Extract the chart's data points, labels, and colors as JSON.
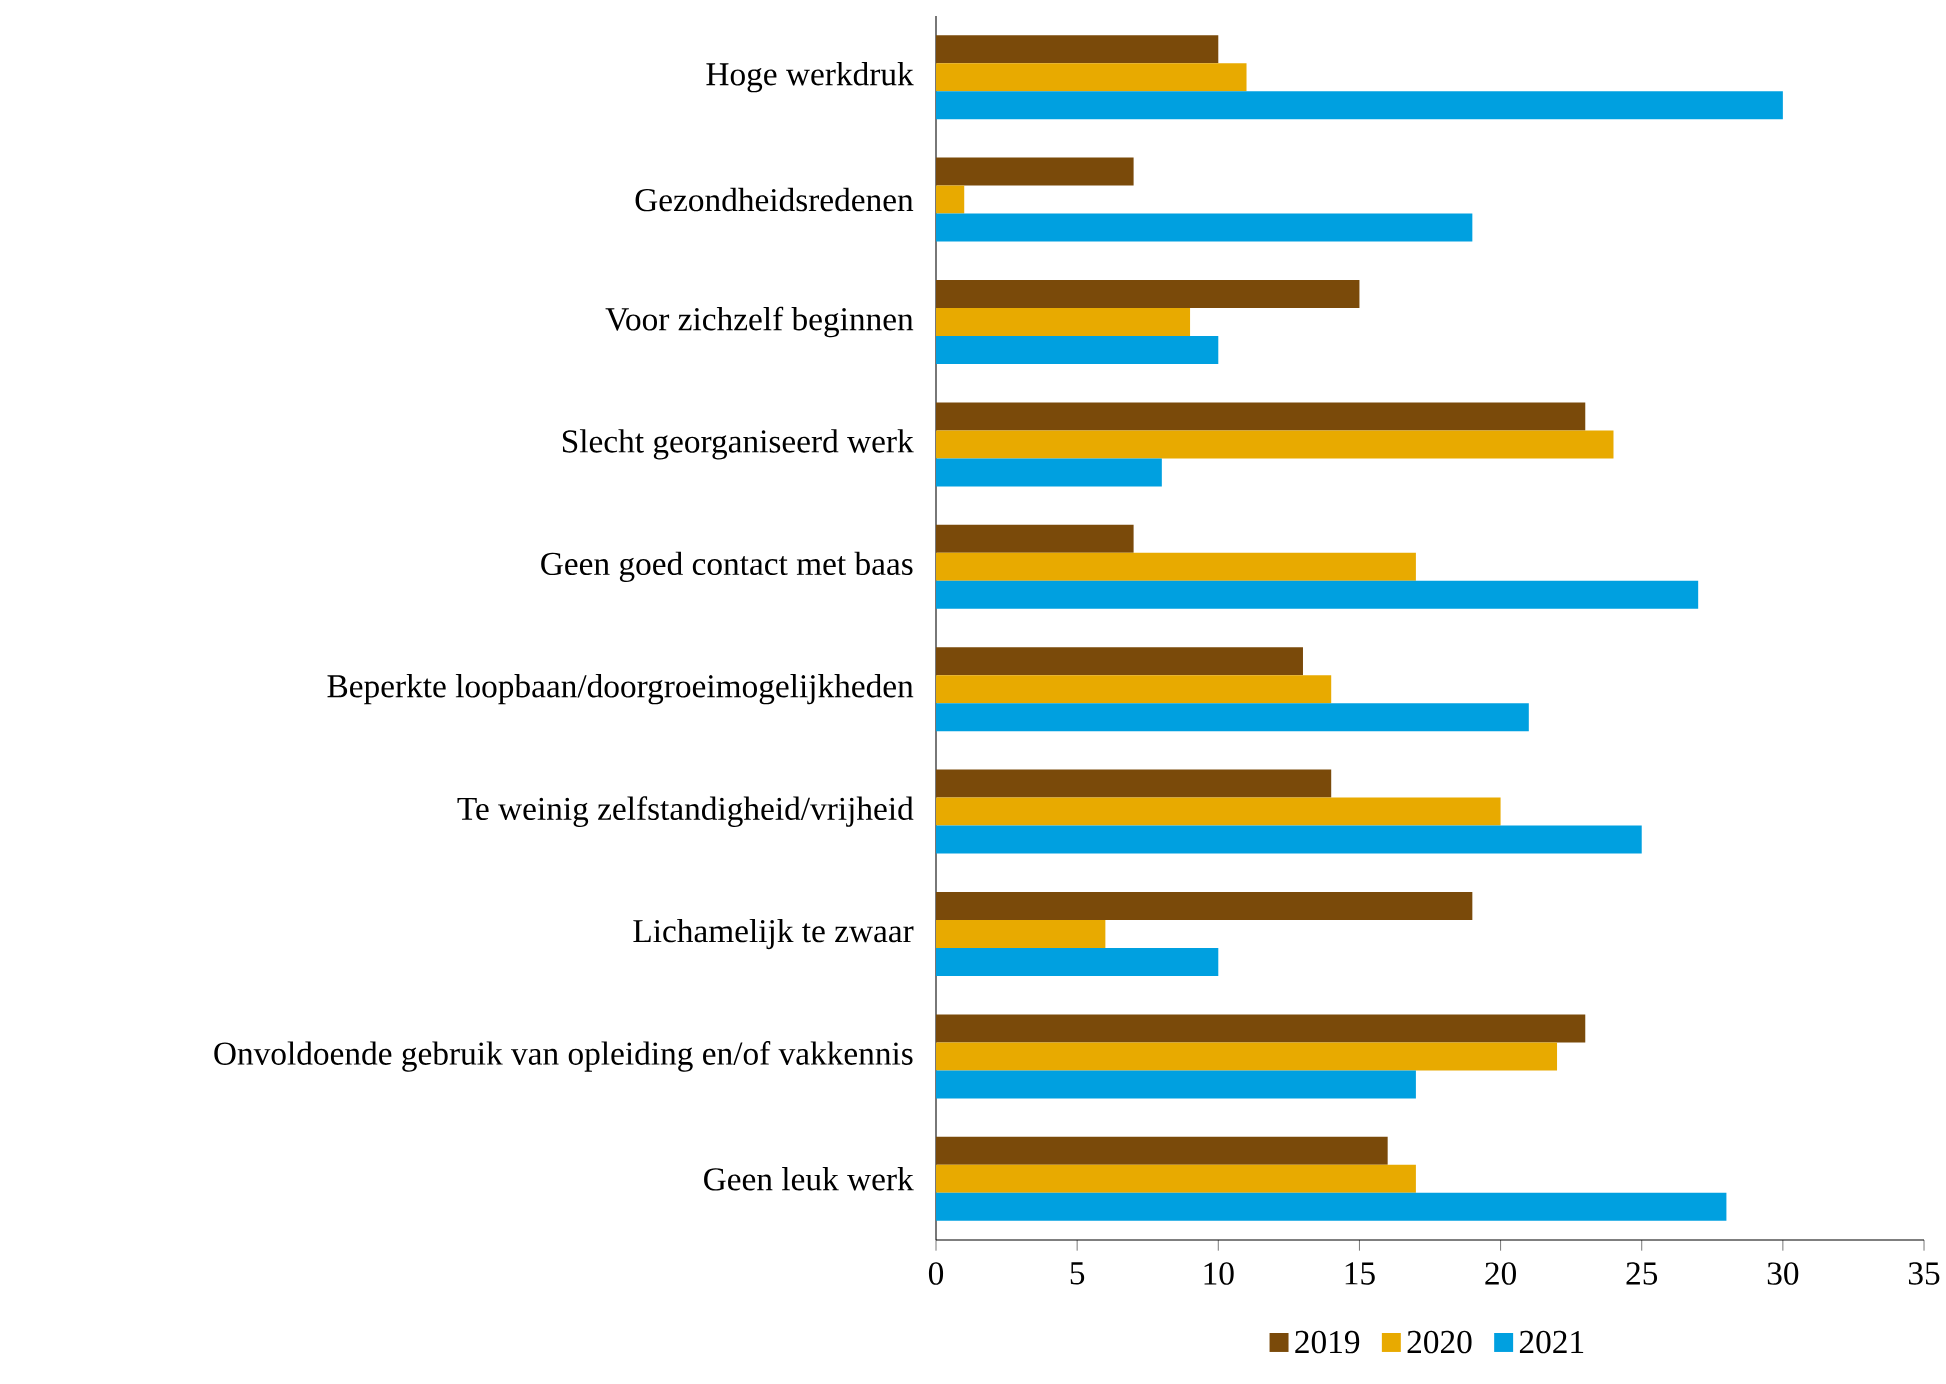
{
  "chart_data": {
    "type": "bar",
    "orientation": "horizontal",
    "categories": [
      "Hoge werkdruk",
      "Gezondheidsredenen",
      "Voor zichzelf beginnen",
      "Slecht georganiseerd werk",
      "Geen goed contact met baas",
      "Beperkte loopbaan/doorgroeimogelijkheden",
      "Te weinig zelfstandigheid/vrijheid",
      "Lichamelijk te zwaar",
      "Onvoldoende gebruik van opleiding en/of vakkennis",
      "Geen leuk werk"
    ],
    "series": [
      {
        "name": "2019",
        "color": "#7a4a0a",
        "values": [
          10,
          7,
          15,
          23,
          7,
          13,
          14,
          19,
          23,
          16
        ]
      },
      {
        "name": "2020",
        "color": "#e8aa00",
        "values": [
          11,
          1,
          9,
          24,
          17,
          14,
          20,
          6,
          22,
          17
        ]
      },
      {
        "name": "2021",
        "color": "#00a0e0",
        "values": [
          30,
          19,
          10,
          8,
          27,
          21,
          25,
          10,
          17,
          28
        ]
      }
    ],
    "xlim": [
      0,
      35
    ],
    "xticks": [
      0,
      5,
      10,
      15,
      20,
      25,
      30,
      35
    ],
    "grid": false,
    "legend": "bottom"
  }
}
